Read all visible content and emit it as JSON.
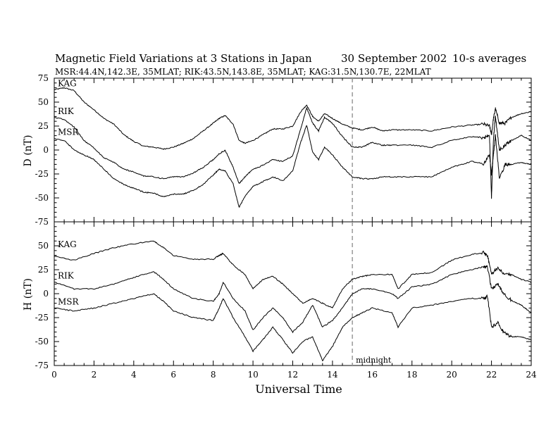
{
  "header": {
    "title": "Magnetic Field Variations at 3 Stations in Japan",
    "date": "30 September 2002",
    "averaging": "10-s averages",
    "stations": "MSR:44.4N,142.3E, 35MLAT;   RIK:43.5N,143.8E, 35MLAT;   KAG:31.5N,130.7E, 22MLAT"
  },
  "chart_data": [
    {
      "type": "line",
      "panel": "top",
      "ylabel": "D (nT)",
      "ylim": [
        -75,
        75
      ],
      "yticks": [
        75,
        50,
        25,
        0,
        -25,
        -50,
        -75
      ],
      "xlim": [
        0,
        24
      ],
      "grid": false,
      "series": [
        {
          "name": "KAG",
          "x": [
            0,
            0.5,
            1,
            1.5,
            2,
            2.5,
            3,
            3.5,
            4,
            4.5,
            5,
            5.5,
            6,
            6.5,
            7,
            7.5,
            8,
            8.3,
            8.6,
            9,
            9.3,
            9.6,
            10,
            10.5,
            11,
            11.5,
            12,
            12.4,
            12.7,
            13,
            13.3,
            13.6,
            14,
            14.5,
            15,
            15.5,
            16,
            16.5,
            17,
            18,
            19,
            20,
            21,
            21.6,
            21.9,
            22,
            22.1,
            22.2,
            22.4,
            22.7,
            23,
            23.5,
            24
          ],
          "y": [
            63,
            65,
            62,
            50,
            42,
            33,
            27,
            16,
            9,
            4,
            3,
            1,
            3,
            7,
            12,
            20,
            28,
            33,
            36,
            27,
            10,
            7,
            10,
            16,
            22,
            22,
            25,
            40,
            47,
            35,
            30,
            38,
            33,
            27,
            23,
            21,
            24,
            20,
            21,
            21,
            20,
            24,
            26,
            27,
            25,
            16,
            33,
            43,
            28,
            28,
            34,
            38,
            40
          ]
        },
        {
          "name": "RIK",
          "x": [
            0,
            0.5,
            1,
            1.5,
            2,
            2.5,
            3,
            3.5,
            4,
            4.5,
            5,
            5.5,
            6,
            6.5,
            7,
            7.5,
            8,
            8.3,
            8.6,
            9,
            9.3,
            9.6,
            10,
            10.5,
            11,
            11.5,
            12,
            12.4,
            12.7,
            13,
            13.3,
            13.6,
            14,
            14.5,
            15,
            15.5,
            16,
            16.5,
            17,
            18,
            19,
            20,
            21,
            21.6,
            21.9,
            22,
            22.1,
            22.2,
            22.4,
            22.7,
            23,
            23.5,
            24
          ],
          "y": [
            34,
            32,
            24,
            10,
            2,
            -8,
            -13,
            -20,
            -23,
            -27,
            -28,
            -30,
            -28,
            -28,
            -24,
            -18,
            -10,
            -4,
            0,
            -18,
            -35,
            -28,
            -20,
            -16,
            -10,
            -12,
            -6,
            22,
            44,
            28,
            20,
            34,
            28,
            14,
            3,
            3,
            8,
            5,
            5,
            5,
            3,
            10,
            14,
            13,
            14,
            -50,
            12,
            35,
            0,
            5,
            10,
            15,
            10
          ]
        },
        {
          "name": "MSR",
          "x": [
            0,
            0.5,
            1,
            1.5,
            2,
            2.5,
            3,
            3.5,
            4,
            4.5,
            5,
            5.5,
            6,
            6.5,
            7,
            7.5,
            8,
            8.3,
            8.6,
            9,
            9.3,
            9.6,
            10,
            10.5,
            11,
            11.5,
            12,
            12.4,
            12.7,
            13,
            13.3,
            13.6,
            14,
            14.5,
            15,
            15.5,
            16,
            16.5,
            17,
            18,
            19,
            20,
            21,
            21.6,
            21.9,
            22,
            22.1,
            22.2,
            22.4,
            22.7,
            23,
            23.5,
            24
          ],
          "y": [
            12,
            10,
            0,
            -5,
            -10,
            -20,
            -30,
            -36,
            -40,
            -44,
            -45,
            -49,
            -46,
            -46,
            -42,
            -36,
            -26,
            -20,
            -22,
            -35,
            -60,
            -48,
            -38,
            -33,
            -28,
            -32,
            -22,
            8,
            26,
            -2,
            -10,
            3,
            -5,
            -18,
            -28,
            -30,
            -30,
            -28,
            -28,
            -28,
            -28,
            -18,
            -12,
            -14,
            -5,
            -25,
            -5,
            15,
            -30,
            -15,
            -15,
            -13,
            -15
          ]
        }
      ],
      "annotations": [
        {
          "label": "",
          "x": 15,
          "style": "dashed-vertical"
        }
      ]
    },
    {
      "type": "line",
      "panel": "bottom",
      "xlabel": "Universal Time",
      "ylabel": "H (nT)",
      "ylim": [
        -75,
        75
      ],
      "yticks": [
        50,
        25,
        0,
        -25,
        -50,
        -75
      ],
      "xlim": [
        0,
        24
      ],
      "xticks": [
        0,
        2,
        4,
        6,
        8,
        10,
        12,
        14,
        16,
        18,
        20,
        22,
        24
      ],
      "grid": false,
      "series": [
        {
          "name": "KAG",
          "x": [
            0,
            1,
            2,
            3,
            4,
            5,
            5.5,
            6,
            7,
            8,
            8.3,
            8.5,
            9,
            9.6,
            10,
            10.5,
            11,
            11.5,
            12,
            12.5,
            13,
            13.5,
            14,
            14.5,
            15,
            15.5,
            16,
            17,
            17.3,
            18,
            19,
            20,
            21,
            21.6,
            21.8,
            22,
            22.3,
            22.6,
            23,
            23.5,
            24
          ],
          "y": [
            39,
            35,
            42,
            48,
            52,
            55,
            48,
            40,
            36,
            36,
            40,
            42,
            30,
            20,
            5,
            15,
            18,
            10,
            0,
            -10,
            -5,
            -10,
            -15,
            5,
            15,
            18,
            20,
            20,
            5,
            20,
            22,
            35,
            41,
            43,
            40,
            20,
            27,
            22,
            20,
            15,
            12
          ]
        },
        {
          "name": "RIK",
          "x": [
            0,
            1,
            2,
            3,
            4,
            5,
            5.5,
            6,
            7,
            8,
            8.3,
            8.5,
            9,
            9.6,
            10,
            10.5,
            11,
            11.5,
            12,
            12.5,
            13,
            13.5,
            14,
            14.5,
            15,
            15.5,
            16,
            17,
            17.3,
            18,
            19,
            20,
            21,
            21.6,
            21.8,
            22,
            22.3,
            22.6,
            23,
            23.5,
            24
          ],
          "y": [
            12,
            5,
            5,
            10,
            17,
            23,
            15,
            5,
            -5,
            -8,
            0,
            12,
            -5,
            -18,
            -38,
            -25,
            -15,
            -25,
            -40,
            -30,
            -12,
            -35,
            -28,
            -15,
            0,
            5,
            5,
            0,
            -5,
            7,
            10,
            20,
            25,
            28,
            28,
            5,
            10,
            0,
            -7,
            -12,
            -20
          ]
        },
        {
          "name": "MSR",
          "x": [
            0,
            1,
            2,
            3,
            4,
            5,
            5.5,
            6,
            7,
            8,
            8.3,
            8.5,
            9,
            9.6,
            10,
            10.5,
            11,
            11.5,
            12,
            12.5,
            13,
            13.5,
            14,
            14.5,
            15,
            15.5,
            16,
            17,
            17.3,
            18,
            19,
            20,
            21,
            21.6,
            21.8,
            22,
            22.3,
            22.6,
            23,
            23.5,
            24
          ],
          "y": [
            -15,
            -18,
            -15,
            -10,
            -5,
            0,
            -8,
            -18,
            -25,
            -28,
            -15,
            -5,
            -25,
            -45,
            -60,
            -48,
            -35,
            -48,
            -62,
            -50,
            -45,
            -70,
            -55,
            -35,
            -25,
            -20,
            -15,
            -20,
            -35,
            -15,
            -12,
            -8,
            -5,
            -5,
            -3,
            -35,
            -30,
            -40,
            -45,
            -45,
            -48
          ]
        }
      ],
      "annotations": [
        {
          "label": "midnight",
          "x": 15,
          "style": "dashed-vertical"
        }
      ]
    }
  ]
}
